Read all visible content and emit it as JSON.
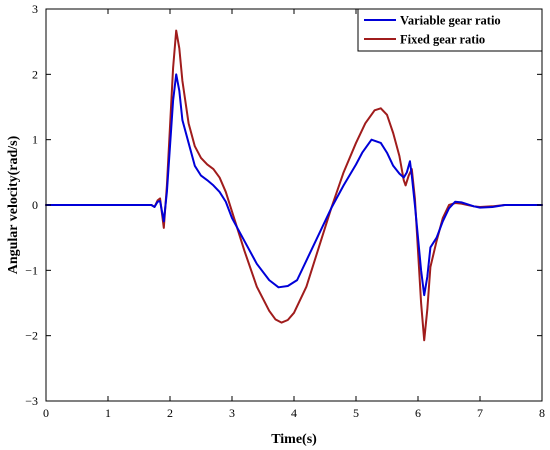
{
  "chart_data": {
    "type": "line",
    "xlabel": "Time(s)",
    "ylabel": "Angular velocity(rad/s)",
    "xlim": [
      0,
      8
    ],
    "ylim": [
      -3,
      3
    ],
    "xticks": [
      0,
      1,
      2,
      3,
      4,
      5,
      6,
      7,
      8
    ],
    "yticks": [
      -3,
      -2,
      -1,
      0,
      1,
      2,
      3
    ],
    "grid": false,
    "legend_position": "top-right",
    "series": [
      {
        "name": "Variable gear ratio",
        "color": "#0000d8",
        "points": [
          [
            0,
            0
          ],
          [
            1.5,
            0
          ],
          [
            1.7,
            0
          ],
          [
            1.75,
            -0.03
          ],
          [
            1.8,
            0.05
          ],
          [
            1.84,
            0.06
          ],
          [
            1.9,
            -0.25
          ],
          [
            1.95,
            0.2
          ],
          [
            2.0,
            0.9
          ],
          [
            2.05,
            1.6
          ],
          [
            2.1,
            2.0
          ],
          [
            2.15,
            1.75
          ],
          [
            2.2,
            1.3
          ],
          [
            2.3,
            0.95
          ],
          [
            2.4,
            0.6
          ],
          [
            2.5,
            0.45
          ],
          [
            2.6,
            0.38
          ],
          [
            2.7,
            0.3
          ],
          [
            2.8,
            0.2
          ],
          [
            2.9,
            0.05
          ],
          [
            3.0,
            -0.2
          ],
          [
            3.2,
            -0.55
          ],
          [
            3.4,
            -0.9
          ],
          [
            3.6,
            -1.15
          ],
          [
            3.75,
            -1.26
          ],
          [
            3.9,
            -1.24
          ],
          [
            4.05,
            -1.15
          ],
          [
            4.2,
            -0.85
          ],
          [
            4.4,
            -0.45
          ],
          [
            4.6,
            -0.05
          ],
          [
            4.8,
            0.3
          ],
          [
            5.0,
            0.62
          ],
          [
            5.1,
            0.8
          ],
          [
            5.25,
            1.0
          ],
          [
            5.4,
            0.95
          ],
          [
            5.5,
            0.8
          ],
          [
            5.6,
            0.6
          ],
          [
            5.7,
            0.48
          ],
          [
            5.77,
            0.42
          ],
          [
            5.82,
            0.5
          ],
          [
            5.87,
            0.67
          ],
          [
            5.9,
            0.45
          ],
          [
            5.95,
            0.0
          ],
          [
            6.0,
            -0.5
          ],
          [
            6.05,
            -1.0
          ],
          [
            6.1,
            -1.38
          ],
          [
            6.15,
            -1.1
          ],
          [
            6.2,
            -0.65
          ],
          [
            6.3,
            -0.5
          ],
          [
            6.4,
            -0.25
          ],
          [
            6.5,
            -0.05
          ],
          [
            6.6,
            0.05
          ],
          [
            6.7,
            0.04
          ],
          [
            6.8,
            0.01
          ],
          [
            6.9,
            -0.02
          ],
          [
            7.0,
            -0.04
          ],
          [
            7.2,
            -0.03
          ],
          [
            7.4,
            0.0
          ],
          [
            8.0,
            0.0
          ]
        ]
      },
      {
        "name": "Fixed gear ratio",
        "color": "#a01c1c",
        "points": [
          [
            0,
            0
          ],
          [
            1.5,
            0
          ],
          [
            1.7,
            0
          ],
          [
            1.75,
            -0.03
          ],
          [
            1.8,
            0.07
          ],
          [
            1.84,
            0.1
          ],
          [
            1.9,
            -0.35
          ],
          [
            1.95,
            0.3
          ],
          [
            2.0,
            1.2
          ],
          [
            2.05,
            2.1
          ],
          [
            2.1,
            2.67
          ],
          [
            2.15,
            2.4
          ],
          [
            2.2,
            1.9
          ],
          [
            2.3,
            1.25
          ],
          [
            2.4,
            0.9
          ],
          [
            2.5,
            0.72
          ],
          [
            2.6,
            0.62
          ],
          [
            2.7,
            0.55
          ],
          [
            2.8,
            0.42
          ],
          [
            2.9,
            0.2
          ],
          [
            3.0,
            -0.1
          ],
          [
            3.2,
            -0.7
          ],
          [
            3.4,
            -1.25
          ],
          [
            3.6,
            -1.62
          ],
          [
            3.7,
            -1.75
          ],
          [
            3.8,
            -1.8
          ],
          [
            3.9,
            -1.76
          ],
          [
            4.0,
            -1.65
          ],
          [
            4.2,
            -1.25
          ],
          [
            4.4,
            -0.65
          ],
          [
            4.6,
            -0.05
          ],
          [
            4.8,
            0.5
          ],
          [
            5.0,
            0.95
          ],
          [
            5.15,
            1.25
          ],
          [
            5.3,
            1.45
          ],
          [
            5.4,
            1.48
          ],
          [
            5.5,
            1.38
          ],
          [
            5.6,
            1.1
          ],
          [
            5.7,
            0.75
          ],
          [
            5.77,
            0.38
          ],
          [
            5.8,
            0.3
          ],
          [
            5.85,
            0.45
          ],
          [
            5.9,
            0.55
          ],
          [
            5.95,
            0.1
          ],
          [
            6.0,
            -0.7
          ],
          [
            6.05,
            -1.5
          ],
          [
            6.1,
            -2.07
          ],
          [
            6.15,
            -1.6
          ],
          [
            6.2,
            -0.95
          ],
          [
            6.3,
            -0.55
          ],
          [
            6.4,
            -0.2
          ],
          [
            6.5,
            0.0
          ],
          [
            6.6,
            0.03
          ],
          [
            6.7,
            0.02
          ],
          [
            6.8,
            0.0
          ],
          [
            6.9,
            -0.02
          ],
          [
            7.0,
            -0.03
          ],
          [
            7.2,
            -0.02
          ],
          [
            7.4,
            0.0
          ],
          [
            8.0,
            0.0
          ]
        ]
      }
    ]
  }
}
